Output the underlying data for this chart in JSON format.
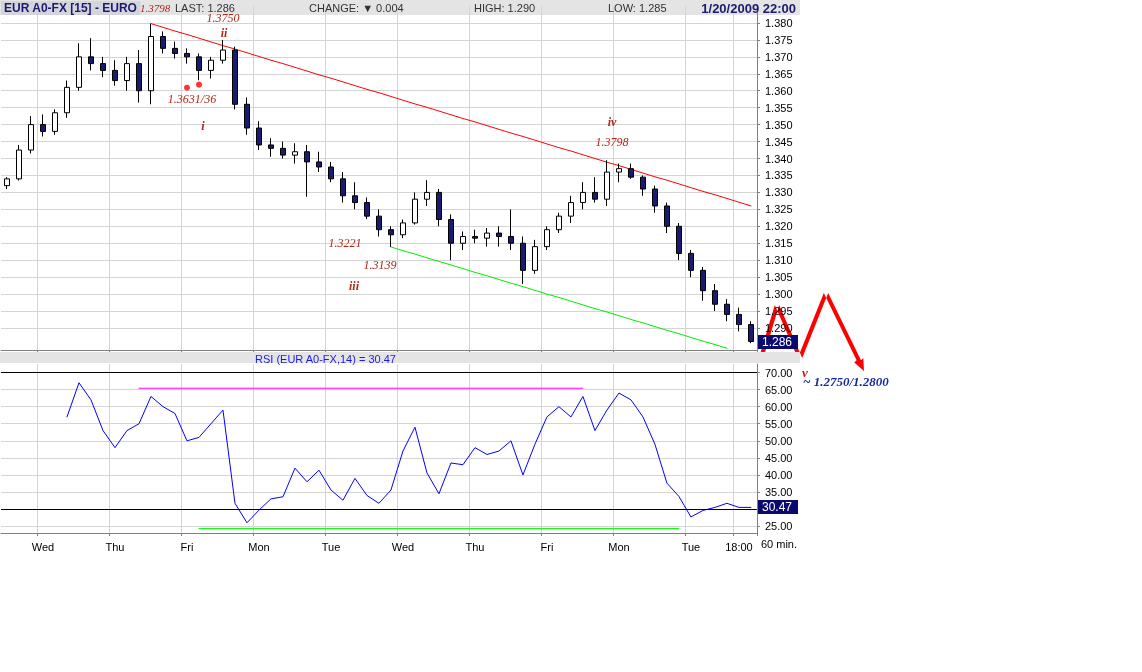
{
  "chart_data": [
    {
      "type": "candlestick",
      "title": "EUR A0-FX [15] - EURO",
      "categories": [
        null,
        null,
        null,
        null,
        null,
        null,
        null,
        null,
        null,
        null,
        null,
        null,
        null,
        null,
        null,
        null,
        null,
        null,
        null,
        null,
        null,
        null,
        null,
        null,
        null,
        null,
        null,
        null,
        null,
        null,
        null,
        null,
        null,
        null,
        null,
        null,
        null,
        null,
        null,
        null,
        null,
        null,
        null,
        null,
        null,
        null,
        null,
        null,
        null,
        null,
        null,
        null,
        null,
        null,
        null,
        null,
        null,
        null,
        null,
        null,
        null,
        null,
        null
      ],
      "ohlc": [
        [
          1.332,
          1.3345,
          1.331,
          1.334
        ],
        [
          1.334,
          1.344,
          1.3335,
          1.3425
        ],
        [
          1.3425,
          1.3525,
          1.3415,
          1.35
        ],
        [
          1.35,
          1.353,
          1.3465,
          1.348
        ],
        [
          1.348,
          1.3545,
          1.347,
          1.3535
        ],
        [
          1.3535,
          1.363,
          1.352,
          1.361
        ],
        [
          1.361,
          1.374,
          1.36,
          1.37
        ],
        [
          1.37,
          1.3755,
          1.366,
          1.368
        ],
        [
          1.368,
          1.37,
          1.364,
          1.366
        ],
        [
          1.366,
          1.369,
          1.3615,
          1.363
        ],
        [
          1.363,
          1.37,
          1.36,
          1.368
        ],
        [
          1.368,
          1.372,
          1.3565,
          1.36
        ],
        [
          1.36,
          1.3798,
          1.356,
          1.376
        ],
        [
          1.376,
          1.3775,
          1.371,
          1.3725
        ],
        [
          1.3725,
          1.3745,
          1.3695,
          1.371
        ],
        [
          1.371,
          1.3725,
          1.368,
          1.37
        ],
        [
          1.37,
          1.371,
          1.3631,
          1.366
        ],
        [
          1.366,
          1.37,
          1.3636,
          1.369
        ],
        [
          1.369,
          1.375,
          1.368,
          1.372
        ],
        [
          1.372,
          1.373,
          1.3545,
          1.356
        ],
        [
          1.356,
          1.358,
          1.347,
          1.349
        ],
        [
          1.349,
          1.351,
          1.3425,
          1.344
        ],
        [
          1.344,
          1.346,
          1.3405,
          1.343
        ],
        [
          1.343,
          1.345,
          1.34,
          1.341
        ],
        [
          1.341,
          1.3445,
          1.3385,
          1.342
        ],
        [
          1.342,
          1.344,
          1.3287,
          1.339
        ],
        [
          1.339,
          1.342,
          1.336,
          1.3375
        ],
        [
          1.3375,
          1.339,
          1.333,
          1.334
        ],
        [
          1.334,
          1.336,
          1.327,
          1.329
        ],
        [
          1.329,
          1.333,
          1.325,
          1.327
        ],
        [
          1.327,
          1.3285,
          1.3221,
          1.323
        ],
        [
          1.323,
          1.325,
          1.317,
          1.319
        ],
        [
          1.319,
          1.32,
          1.3139,
          1.3175
        ],
        [
          1.3175,
          1.322,
          1.3165,
          1.321
        ],
        [
          1.321,
          1.33,
          1.3205,
          1.328
        ],
        [
          1.328,
          1.3336,
          1.326,
          1.33
        ],
        [
          1.33,
          1.331,
          1.32,
          1.322
        ],
        [
          1.322,
          1.3235,
          1.31,
          1.315
        ],
        [
          1.315,
          1.3185,
          1.313,
          1.317
        ],
        [
          1.317,
          1.319,
          1.315,
          1.3165
        ],
        [
          1.3165,
          1.3195,
          1.314,
          1.318
        ],
        [
          1.318,
          1.32,
          1.314,
          1.317
        ],
        [
          1.317,
          1.325,
          1.313,
          1.315
        ],
        [
          1.315,
          1.317,
          1.303,
          1.307
        ],
        [
          1.307,
          1.316,
          1.306,
          1.314
        ],
        [
          1.314,
          1.32,
          1.313,
          1.319
        ],
        [
          1.319,
          1.324,
          1.318,
          1.323
        ],
        [
          1.323,
          1.329,
          1.321,
          1.327
        ],
        [
          1.327,
          1.333,
          1.325,
          1.33
        ],
        [
          1.33,
          1.3345,
          1.327,
          1.328
        ],
        [
          1.328,
          1.3395,
          1.326,
          1.336
        ],
        [
          1.336,
          1.3385,
          1.333,
          1.337
        ],
        [
          1.337,
          1.3385,
          1.334,
          1.3345
        ],
        [
          1.3345,
          1.335,
          1.329,
          1.331
        ],
        [
          1.331,
          1.332,
          1.324,
          1.326
        ],
        [
          1.326,
          1.327,
          1.318,
          1.32
        ],
        [
          1.32,
          1.321,
          1.31,
          1.312
        ],
        [
          1.312,
          1.313,
          1.305,
          1.307
        ],
        [
          1.307,
          1.308,
          1.298,
          1.301
        ],
        [
          1.301,
          1.303,
          1.295,
          1.297
        ],
        [
          1.297,
          1.2985,
          1.292,
          1.294
        ],
        [
          1.294,
          1.296,
          1.289,
          1.291
        ],
        [
          1.291,
          1.292,
          1.2855,
          1.286
        ]
      ],
      "series": [
        {
          "type": "line",
          "color": "#ff0000",
          "values": [
            null,
            null,
            null,
            null,
            null,
            null,
            null,
            null,
            null,
            null,
            null,
            null,
            1.3798,
            1.3787,
            1.3776,
            1.3766,
            1.3755,
            1.3744,
            1.3733,
            1.3723,
            1.3712,
            1.3701,
            1.369,
            1.368,
            1.3669,
            1.3658,
            1.3647,
            1.3637,
            1.3626,
            1.3615,
            1.3604,
            1.3594,
            1.3583,
            1.3572,
            1.3561,
            1.3551,
            1.354,
            1.3529,
            1.3518,
            1.3508,
            1.3497,
            1.3486,
            1.3475,
            1.3465,
            1.3454,
            1.3443,
            1.3432,
            1.3422,
            1.3411,
            1.34,
            1.3389,
            1.3379,
            1.3368,
            1.3357,
            1.3346,
            1.3336,
            1.3325,
            1.3314,
            1.3303,
            1.3293,
            1.3282,
            1.3271,
            1.326
          ]
        },
        {
          "type": "line",
          "color": "#00ee00",
          "values": [
            null,
            null,
            null,
            null,
            null,
            null,
            null,
            null,
            null,
            null,
            null,
            null,
            null,
            null,
            null,
            null,
            null,
            null,
            null,
            null,
            null,
            null,
            null,
            null,
            null,
            null,
            null,
            null,
            null,
            null,
            null,
            null,
            1.3139,
            1.3128,
            1.3118,
            1.3107,
            1.3096,
            1.3086,
            1.3075,
            1.3064,
            1.3054,
            1.3043,
            1.3032,
            1.3022,
            1.3011,
            1.3,
            1.299,
            1.2979,
            1.2968,
            1.2957,
            1.2947,
            1.2936,
            1.2925,
            1.2915,
            1.2904,
            1.2893,
            1.2883,
            1.2872,
            1.2861,
            1.2851,
            1.284,
            null,
            null
          ]
        },
        {
          "type": "scatter",
          "color": "#ff0000",
          "marker": "circle",
          "values": [
            null,
            null,
            null,
            null,
            null,
            null,
            null,
            null,
            null,
            null,
            null,
            null,
            null,
            null,
            null,
            1.3609,
            1.3618,
            null,
            null,
            null,
            null,
            null,
            null,
            null,
            null,
            null,
            null,
            null,
            null,
            null,
            null,
            null,
            null,
            null,
            null,
            null,
            null,
            null,
            null,
            null,
            null,
            null,
            null,
            null,
            null,
            null,
            null,
            null,
            null,
            null,
            null,
            null,
            null,
            null,
            null,
            null,
            null,
            null,
            null,
            null,
            null,
            null,
            null
          ]
        }
      ],
      "ylim": [
        1.2835,
        1.385
      ],
      "yticks": [
        {
          "value": 1.29,
          "label": "1.290"
        },
        {
          "value": 1.295,
          "label": "1.295"
        },
        {
          "value": 1.3,
          "label": "1.300"
        },
        {
          "value": 1.305,
          "label": "1.305"
        },
        {
          "value": 1.31,
          "label": "1.310"
        },
        {
          "value": 1.315,
          "label": "1.315"
        },
        {
          "value": 1.32,
          "label": "1.320"
        },
        {
          "value": 1.325,
          "label": "1.325"
        },
        {
          "value": 1.33,
          "label": "1.330"
        },
        {
          "value": 1.335,
          "label": "1.335"
        },
        {
          "value": 1.34,
          "label": "1.340"
        },
        {
          "value": 1.345,
          "label": "1.345"
        },
        {
          "value": 1.35,
          "label": "1.350"
        },
        {
          "value": 1.355,
          "label": "1.355"
        },
        {
          "value": 1.36,
          "label": "1.360"
        },
        {
          "value": 1.365,
          "label": "1.365"
        },
        {
          "value": 1.37,
          "label": "1.370"
        },
        {
          "value": 1.375,
          "label": "1.375"
        },
        {
          "value": 1.38,
          "label": "1.380"
        }
      ],
      "grid": true,
      "tick_labels": "y",
      "marker": "none",
      "line_style": "solid",
      "annotations": [
        "LAST: 1.286",
        "CHANGE: ▼ 0.004",
        "HIGH: 1.290",
        "LOW: 1.285",
        "1/20/2009 22:00",
        "v",
        "~ 1.2750/1.2800",
        "1.3798",
        "1.3750",
        "ii",
        "1.3631/36",
        "i",
        "1.3221",
        "1.3139",
        "iii",
        "iv",
        "1.3798",
        "1.286"
      ]
    },
    {
      "type": "line",
      "title": "RSI (EUR A0-FX,14) = 30.47",
      "xlabel": "60 min.",
      "categories": [
        null,
        null,
        null,
        "Wed",
        null,
        null,
        null,
        null,
        null,
        "Thu",
        null,
        null,
        null,
        null,
        null,
        "Fri",
        null,
        null,
        null,
        null,
        null,
        "Mon",
        null,
        null,
        null,
        null,
        null,
        "Tue",
        null,
        null,
        null,
        null,
        null,
        "Wed",
        null,
        null,
        null,
        null,
        null,
        "Thu",
        null,
        null,
        null,
        null,
        null,
        "Fri",
        null,
        null,
        null,
        null,
        null,
        "Mon",
        null,
        null,
        null,
        null,
        null,
        "Tue",
        null,
        null,
        null,
        "18:00",
        null
      ],
      "series": [
        {
          "color": "#0000ff",
          "values": [
            null,
            null,
            null,
            null,
            null,
            57,
            67,
            62,
            53,
            48,
            53,
            55,
            63,
            60,
            58,
            50,
            51,
            55,
            59,
            31.7,
            26,
            29.7,
            33,
            33.6,
            42,
            38,
            41.4,
            35.6,
            32.6,
            39,
            34,
            31.7,
            35.6,
            47,
            54,
            40.6,
            34.5,
            43.5,
            43,
            48,
            46,
            47,
            50,
            40,
            49,
            57,
            60,
            57,
            63,
            53,
            59,
            64,
            62,
            57,
            49,
            37.6,
            33.7,
            27.7,
            29.6,
            30.5,
            31.7,
            30.5,
            30.5
          ]
        },
        {
          "color": "#ff00ff",
          "values": [
            null,
            null,
            null,
            null,
            null,
            null,
            null,
            null,
            null,
            null,
            null,
            65.4,
            65.4,
            65.4,
            65.4,
            65.4,
            65.4,
            65.4,
            65.4,
            65.4,
            65.4,
            65.4,
            65.4,
            65.4,
            65.4,
            65.4,
            65.4,
            65.4,
            65.4,
            65.4,
            65.4,
            65.4,
            65.4,
            65.4,
            65.4,
            65.4,
            65.4,
            65.4,
            65.4,
            65.4,
            65.4,
            65.4,
            65.4,
            65.4,
            65.4,
            65.4,
            65.4,
            65.4,
            65.4,
            null,
            null,
            null,
            null,
            null,
            null,
            null,
            null,
            null,
            null,
            null,
            null,
            null,
            null
          ]
        },
        {
          "color": "#00ff00",
          "values": [
            null,
            null,
            null,
            null,
            null,
            null,
            null,
            null,
            null,
            null,
            null,
            null,
            null,
            null,
            null,
            null,
            24.3,
            24.3,
            24.3,
            24.3,
            24.3,
            24.3,
            24.3,
            24.3,
            24.3,
            24.3,
            24.3,
            24.3,
            24.3,
            24.3,
            24.3,
            24.3,
            24.3,
            24.3,
            24.3,
            24.3,
            24.3,
            24.3,
            24.3,
            24.3,
            24.3,
            24.3,
            24.3,
            24.3,
            24.3,
            24.3,
            24.3,
            24.3,
            24.3,
            24.3,
            24.3,
            24.3,
            24.3,
            24.3,
            24.3,
            24.3,
            24.3,
            null,
            null,
            null,
            null,
            null,
            null
          ]
        }
      ],
      "ref_lines": [
        {
          "axis": "y",
          "value": 70,
          "color": "#000000"
        },
        {
          "axis": "y",
          "value": 30,
          "color": "#000000"
        }
      ],
      "ylim": [
        23,
        72.5
      ],
      "yticks": [
        {
          "value": 25,
          "label": "25.00"
        },
        {
          "value": 35,
          "label": "35.00"
        },
        {
          "value": 40,
          "label": "40.00"
        },
        {
          "value": 45,
          "label": "45.00"
        },
        {
          "value": 50,
          "label": "50.00"
        },
        {
          "value": 55,
          "label": "55.00"
        },
        {
          "value": 60,
          "label": "60.00"
        },
        {
          "value": 65,
          "label": "65.00"
        },
        {
          "value": 70,
          "label": "70.00"
        }
      ],
      "grid": true,
      "marker": "none",
      "line_style": "solid",
      "annotations": [
        "30.47"
      ]
    }
  ]
}
